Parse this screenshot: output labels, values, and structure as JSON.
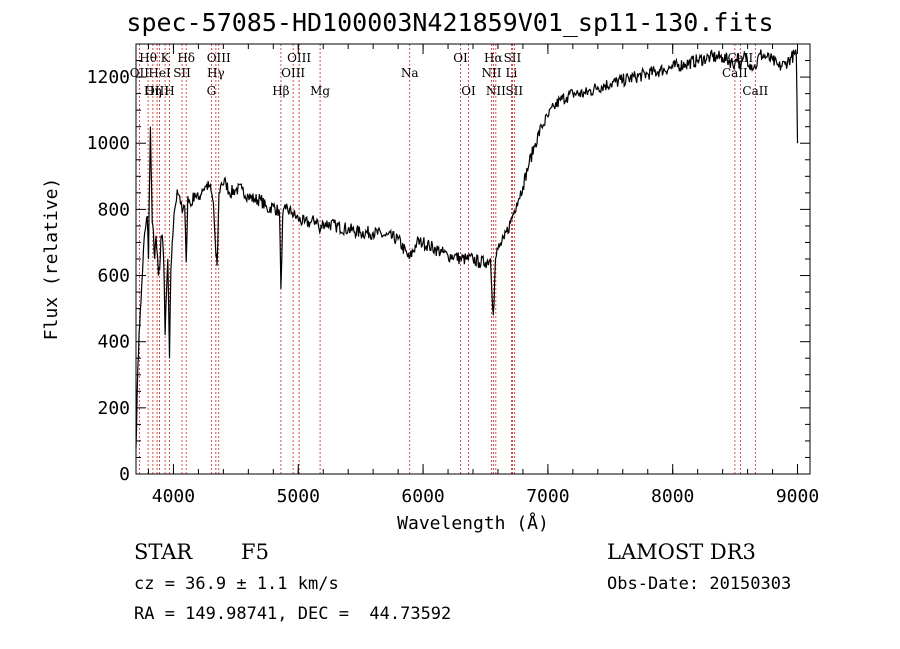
{
  "title": "spec-57085-HD100003N421859V01_sp11-130.fits",
  "info": {
    "class_label": "STAR",
    "subclass": "F5",
    "cz": "cz = 36.9 ± 1.1 km/s",
    "coords": "RA = 149.98741, DEC =  44.73592",
    "survey": "LAMOST DR3",
    "obs_date": "Obs-Date: 20150303"
  },
  "colors": {
    "spectrum": "#000000",
    "line_marker": "#cc2222",
    "axes": "#000000"
  },
  "chart_data": {
    "type": "line",
    "title": "spec-57085-HD100003N421859V01_sp11-130.fits",
    "xlabel": "Wavelength (Å)",
    "ylabel": "Flux (relative)",
    "xlim": [
      3700,
      9100
    ],
    "ylim": [
      0,
      1300
    ],
    "xticks": [
      4000,
      5000,
      6000,
      7000,
      8000,
      9000
    ],
    "yticks": [
      0,
      200,
      400,
      600,
      800,
      1000,
      1200
    ],
    "series": [
      {
        "name": "Flux",
        "x": [
          3700,
          3710,
          3725,
          3740,
          3760,
          3775,
          3790,
          3800,
          3815,
          3830,
          3840,
          3850,
          3860,
          3880,
          3890,
          3900,
          3915,
          3925,
          3933,
          3945,
          3955,
          3968,
          3980,
          3990,
          4000,
          4010,
          4030,
          4050,
          4070,
          4090,
          4102,
          4115,
          4140,
          4170,
          4200,
          4230,
          4260,
          4290,
          4320,
          4340,
          4350,
          4365,
          4385,
          4420,
          4450,
          4500,
          4550,
          4600,
          4650,
          4700,
          4750,
          4800,
          4850,
          4861,
          4875,
          4900,
          4950,
          5000,
          5050,
          5100,
          5150,
          5172,
          5200,
          5300,
          5400,
          5500,
          5600,
          5700,
          5800,
          5890,
          5950,
          6000,
          6050,
          6100,
          6150,
          6200,
          6250,
          6300,
          6350,
          6400,
          6450,
          6500,
          6540,
          6563,
          6580,
          6600,
          6650,
          6700,
          6750,
          6800,
          6850,
          6900,
          6950,
          7000,
          7050,
          7100,
          7150,
          7200,
          7300,
          7400,
          7500,
          7600,
          7700,
          7800,
          7900,
          8000,
          8100,
          8200,
          8300,
          8400,
          8498,
          8520,
          8542,
          8580,
          8620,
          8662,
          8700,
          8750,
          8800,
          8850,
          8900,
          8950,
          8990,
          9000
        ],
        "values": [
          80,
          250,
          430,
          520,
          680,
          740,
          780,
          650,
          1050,
          760,
          730,
          650,
          720,
          600,
          620,
          720,
          700,
          600,
          420,
          560,
          650,
          350,
          620,
          700,
          750,
          800,
          860,
          840,
          790,
          810,
          640,
          840,
          810,
          850,
          830,
          860,
          870,
          870,
          820,
          660,
          630,
          850,
          880,
          880,
          850,
          860,
          860,
          840,
          830,
          830,
          800,
          810,
          790,
          560,
          780,
          800,
          790,
          770,
          760,
          760,
          770,
          730,
          760,
          750,
          740,
          730,
          730,
          720,
          710,
          650,
          700,
          700,
          690,
          680,
          670,
          660,
          660,
          650,
          650,
          650,
          640,
          640,
          650,
          480,
          650,
          680,
          710,
          760,
          820,
          870,
          940,
          1000,
          1050,
          1080,
          1110,
          1130,
          1140,
          1150,
          1150,
          1170,
          1180,
          1190,
          1200,
          1210,
          1220,
          1230,
          1240,
          1250,
          1260,
          1260,
          1240,
          1270,
          1220,
          1270,
          1240,
          1230,
          1270,
          1260,
          1250,
          1230,
          1240,
          1260,
          1270,
          1000
        ]
      }
    ],
    "spectral_lines": [
      {
        "label": "Hθ",
        "x": 3797,
        "row": 1
      },
      {
        "label": "OII",
        "x": 3727,
        "row": 2
      },
      {
        "label": "OIII",
        "x": 3869,
        "row": 3
      },
      {
        "label": "K",
        "x": 3933,
        "row": 1
      },
      {
        "label": "HeI",
        "x": 3889,
        "row": 2
      },
      {
        "label": "Hη",
        "x": 3835,
        "row": 3
      },
      {
        "label": "SII",
        "x": 4069,
        "row": 2
      },
      {
        "label": "H",
        "x": 3968,
        "row": 3
      },
      {
        "label": "Hδ",
        "x": 4102,
        "row": 1
      },
      {
        "label": "OIII",
        "x": 4363,
        "row": 1
      },
      {
        "label": "Hγ",
        "x": 4340,
        "row": 2
      },
      {
        "label": "G",
        "x": 4304,
        "row": 3
      },
      {
        "label": "Hβ",
        "x": 4861,
        "row": 3
      },
      {
        "label": "OIII",
        "x": 5007,
        "row": 1
      },
      {
        "label": "OIII",
        "x": 4959,
        "row": 2
      },
      {
        "label": "Mg",
        "x": 5175,
        "row": 3
      },
      {
        "label": "Na",
        "x": 5893,
        "row": 2
      },
      {
        "label": "OI",
        "x": 6300,
        "row": 1
      },
      {
        "label": "OI",
        "x": 6364,
        "row": 3
      },
      {
        "label": "Hα",
        "x": 6563,
        "row": 1
      },
      {
        "label": "SII",
        "x": 6716,
        "row": 1
      },
      {
        "label": "NII",
        "x": 6548,
        "row": 2
      },
      {
        "label": "Li",
        "x": 6708,
        "row": 2
      },
      {
        "label": "NII",
        "x": 6583,
        "row": 3
      },
      {
        "label": "SII",
        "x": 6731,
        "row": 3
      },
      {
        "label": "CaII",
        "x": 8498,
        "row": 2
      },
      {
        "label": "CaII",
        "x": 8542,
        "row": 1
      },
      {
        "label": "CaII",
        "x": 8662,
        "row": 3
      }
    ]
  }
}
